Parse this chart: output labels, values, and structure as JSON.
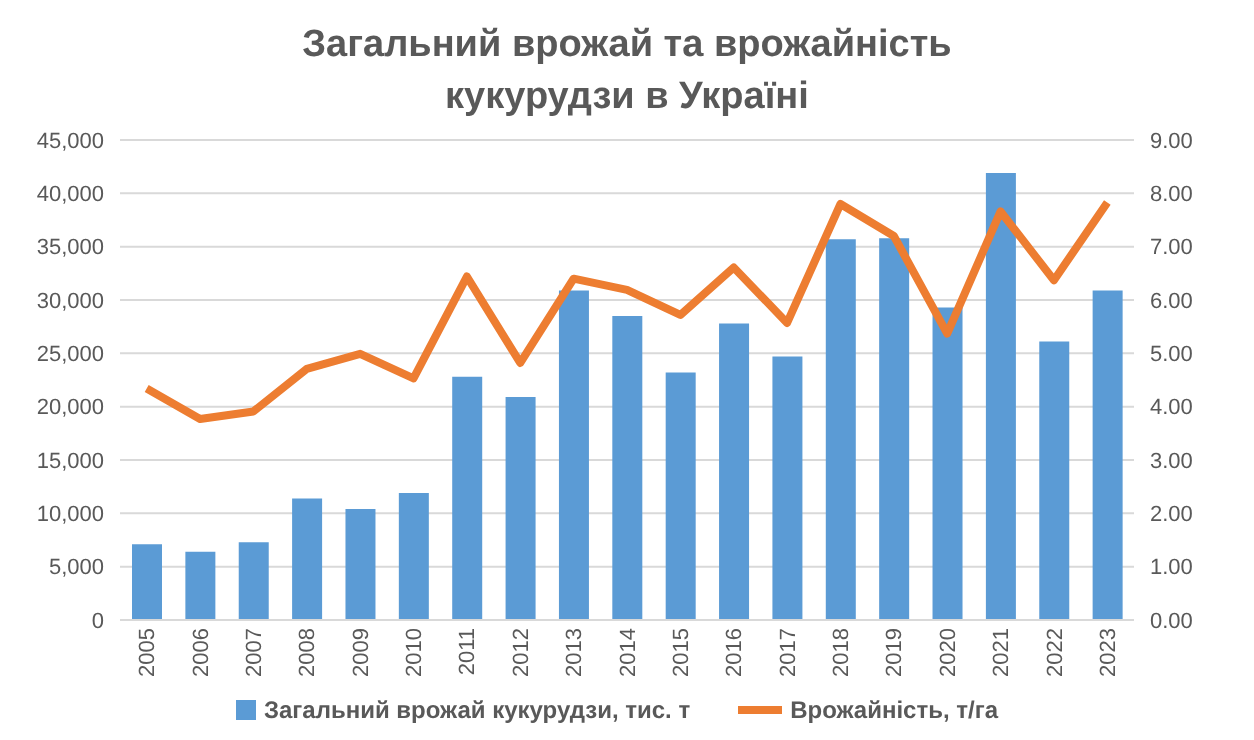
{
  "chart_data": {
    "type": "bar",
    "title": "Загальний врожай та врожайність кукурудзи в Україні",
    "categories": [
      "2005",
      "2006",
      "2007",
      "2008",
      "2009",
      "2010",
      "2011",
      "2012",
      "2013",
      "2014",
      "2015",
      "2016",
      "2017",
      "2018",
      "2019",
      "2020",
      "2021",
      "2022",
      "2023"
    ],
    "series": [
      {
        "name": "Загальний врожай кукурудзи, тис. т",
        "color": "#5b9bd5",
        "values": [
          7100,
          6400,
          7300,
          11400,
          10400,
          11900,
          22800,
          20900,
          30900,
          28500,
          23200,
          27800,
          24700,
          35700,
          35800,
          29300,
          41900,
          26100,
          30900
        ]
      },
      {
        "name": "Врожайність, т/га",
        "type": "line",
        "axis": "y2",
        "color": "#ed7d31",
        "values": [
          4.34,
          3.77,
          3.91,
          4.71,
          4.99,
          4.53,
          6.44,
          4.82,
          6.4,
          6.19,
          5.72,
          6.61,
          5.57,
          7.8,
          7.2,
          5.37,
          7.66,
          6.37,
          7.83
        ]
      }
    ],
    "ylim": [
      0,
      45000
    ],
    "yticks": [
      0,
      {
        "value": 5000,
        "label": "5,000"
      },
      {
        "value": 10000,
        "label": "10,000"
      },
      {
        "value": 15000,
        "label": "15,000"
      },
      {
        "value": 20000,
        "label": "20,000"
      },
      {
        "value": 25000,
        "label": "25,000"
      },
      {
        "value": 30000,
        "label": "30,000"
      },
      {
        "value": 35000,
        "label": "35,000"
      },
      {
        "value": 40000,
        "label": "40,000"
      },
      {
        "value": 45000,
        "label": "45,000"
      }
    ],
    "y2lim": [
      0,
      9
    ],
    "y2ticks": [
      {
        "value": 0,
        "label": "0.00"
      },
      {
        "value": 1,
        "label": "1.00"
      },
      {
        "value": 2,
        "label": "2.00"
      },
      {
        "value": 3,
        "label": "3.00"
      },
      {
        "value": 4,
        "label": "4.00"
      },
      {
        "value": 5,
        "label": "5.00"
      },
      {
        "value": 6,
        "label": "6.00"
      },
      {
        "value": 7,
        "label": "7.00"
      },
      {
        "value": 8,
        "label": "8.00"
      },
      {
        "value": 9,
        "label": "9.00"
      }
    ],
    "grid": "y",
    "legend": "bottom",
    "marker": "none",
    "line_style": "solid"
  }
}
